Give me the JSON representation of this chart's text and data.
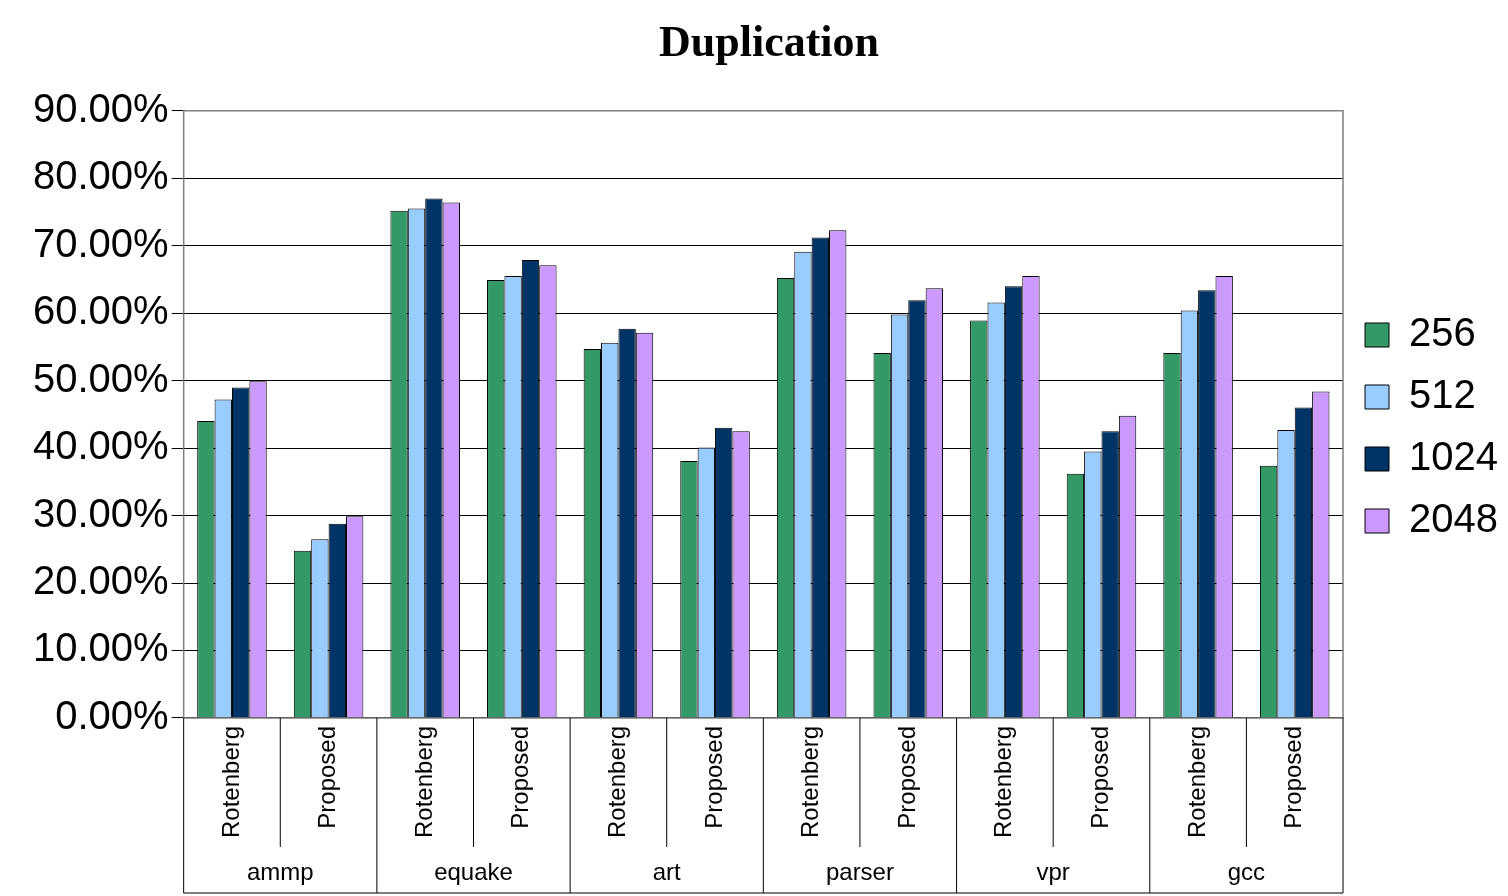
{
  "chart_data": {
    "type": "bar",
    "title": "Duplication",
    "categories": [
      "Rotenberg",
      "Proposed",
      "Rotenberg",
      "Proposed",
      "Rotenberg",
      "Proposed",
      "Rotenberg",
      "Proposed",
      "Rotenberg",
      "Proposed",
      "Rotenberg",
      "Proposed"
    ],
    "annotations": [
      "ammp",
      "equake",
      "art",
      "parser",
      "vpr",
      "gcc"
    ],
    "series": [
      {
        "name": "256",
        "color": "#339966",
        "values": [
          44,
          24.8,
          75.2,
          64.9,
          54.7,
          38.1,
          65.2,
          54.1,
          58.9,
          36.2,
          54.1,
          37.4
        ]
      },
      {
        "name": "512",
        "color": "#99ccff",
        "values": [
          47.2,
          26.5,
          75.5,
          65.5,
          55.6,
          40.1,
          69.1,
          59.8,
          61.6,
          39.5,
          60.4,
          42.7
        ]
      },
      {
        "name": "1024",
        "color": "#003366",
        "values": [
          49,
          28.8,
          77,
          67.9,
          57.7,
          43,
          71.2,
          61.9,
          64,
          42.5,
          63.4,
          46
        ]
      },
      {
        "name": "2048",
        "color": "#cc99ff",
        "values": [
          49.9,
          29.9,
          76.4,
          67.1,
          57.1,
          42.5,
          72.3,
          63.7,
          65.5,
          44.8,
          65.5,
          48.4
        ]
      }
    ],
    "ylim": [
      0,
      90
    ],
    "yticks": [
      {
        "value": 0,
        "label": "0.00%"
      },
      {
        "value": 10,
        "label": "10.00%"
      },
      {
        "value": 20,
        "label": "20.00%"
      },
      {
        "value": 30,
        "label": "30.00%"
      },
      {
        "value": 40,
        "label": "40.00%"
      },
      {
        "value": 50,
        "label": "50.00%"
      },
      {
        "value": 60,
        "label": "60.00%"
      },
      {
        "value": 70,
        "label": "70.00%"
      },
      {
        "value": 80,
        "label": "80.00%"
      },
      {
        "value": 90,
        "label": "90.00%"
      }
    ],
    "grid": "y",
    "legend": "right"
  }
}
